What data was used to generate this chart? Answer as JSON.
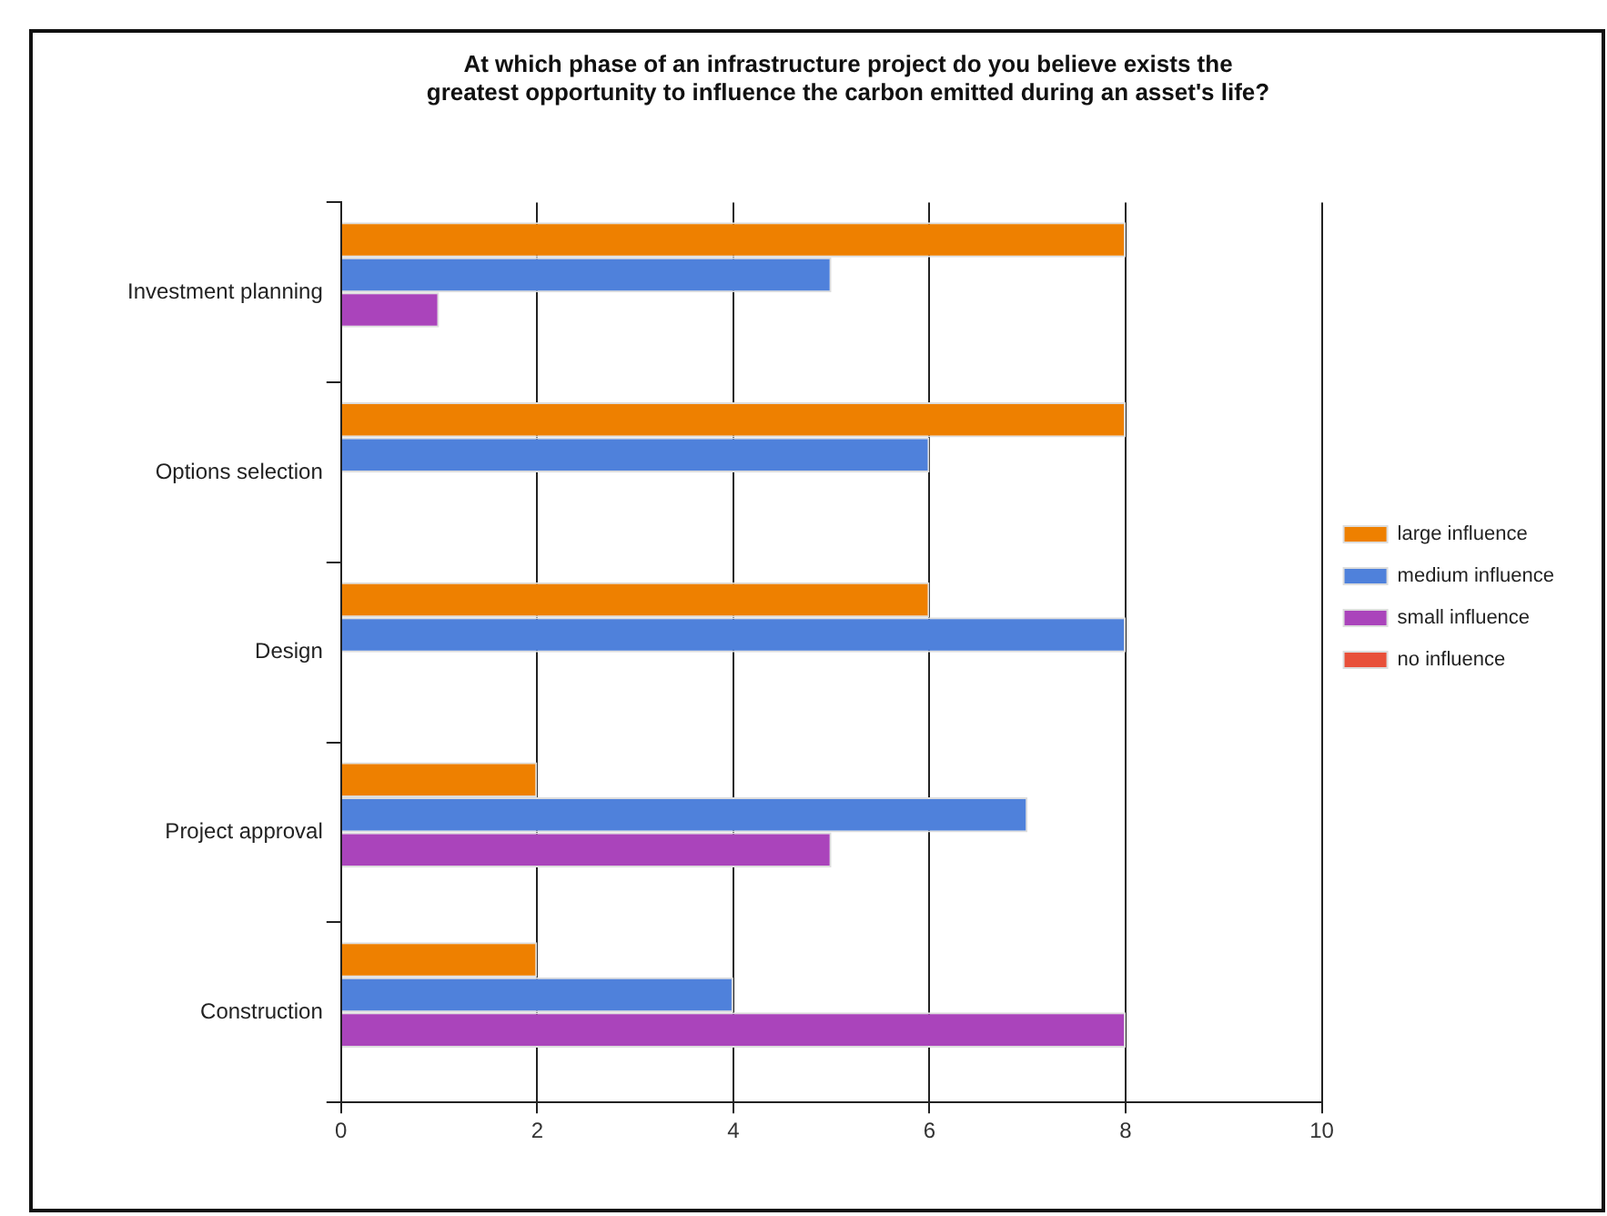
{
  "chart_data": {
    "type": "bar",
    "orientation": "horizontal",
    "title": [
      "At which phase of an infrastructure project do you believe exists the",
      "greatest opportunity to influence the carbon emitted during an asset's life?"
    ],
    "categories": [
      "Investment planning",
      "Options selection",
      "Design",
      "Project approval",
      "Construction"
    ],
    "series": [
      {
        "name": "large influence",
        "color": "#ee8000",
        "values": [
          8,
          8,
          6,
          2,
          2
        ]
      },
      {
        "name": "medium influence",
        "color": "#4f81db",
        "values": [
          5,
          6,
          8,
          7,
          4
        ]
      },
      {
        "name": "small influence",
        "color": "#aa44bb",
        "values": [
          1,
          0,
          0,
          5,
          8
        ]
      },
      {
        "name": "no influence",
        "color": "#e8503a",
        "values": [
          0,
          0,
          0,
          0,
          0
        ]
      }
    ],
    "xlim": [
      0,
      10
    ],
    "xticks": [
      0,
      2,
      4,
      6,
      8,
      10
    ],
    "grid": "x",
    "legend": "right"
  }
}
